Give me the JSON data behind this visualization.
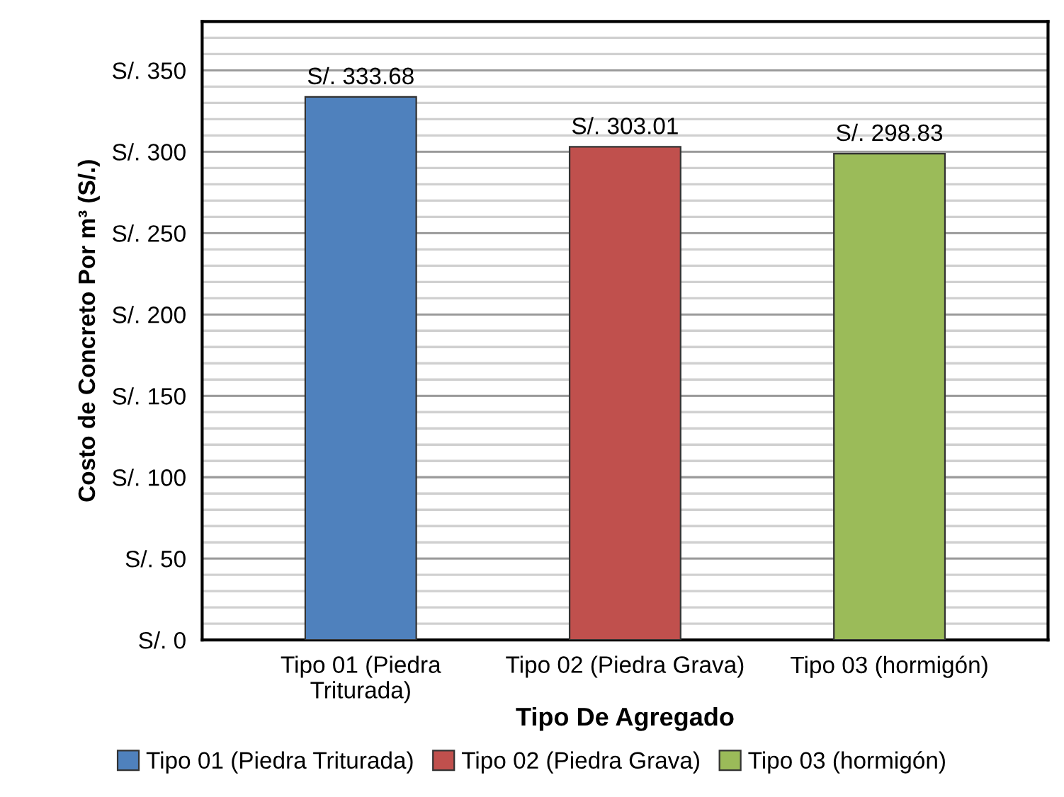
{
  "chart_data": {
    "type": "bar",
    "categories": [
      "Tipo 01 (Piedra\nTriturada)",
      "Tipo 02 (Piedra Grava)",
      "Tipo 03 (hormigón)"
    ],
    "series": [
      {
        "name": "Tipo 01 (Piedra Triturada)",
        "color": "#4f81bd",
        "values": [
          333.68,
          null,
          null
        ],
        "value_labels": [
          "S/. 333.68",
          null,
          null
        ]
      },
      {
        "name": "Tipo 02 (Piedra Grava)",
        "color": "#c0504d",
        "values": [
          null,
          303.01,
          null
        ],
        "value_labels": [
          null,
          "S/. 303.01",
          null
        ]
      },
      {
        "name": "Tipo 03 (hormigón)",
        "color": "#9bbb59",
        "values": [
          null,
          null,
          298.83
        ],
        "value_labels": [
          null,
          null,
          "S/. 298.83"
        ]
      }
    ],
    "xlabel": "Tipo De Agregado",
    "ylabel": "Costo de Concreto Por m³ (S/.)",
    "ylim": [
      0,
      380
    ],
    "yticks": [
      {
        "value": 0,
        "label": "S/. 0"
      },
      {
        "value": 10,
        "label": null
      },
      {
        "value": 20,
        "label": null
      },
      {
        "value": 30,
        "label": null
      },
      {
        "value": 40,
        "label": null
      },
      {
        "value": 50,
        "label": "S/. 50"
      },
      {
        "value": 60,
        "label": null
      },
      {
        "value": 70,
        "label": null
      },
      {
        "value": 80,
        "label": null
      },
      {
        "value": 90,
        "label": null
      },
      {
        "value": 100,
        "label": "S/. 100"
      },
      {
        "value": 110,
        "label": null
      },
      {
        "value": 120,
        "label": null
      },
      {
        "value": 130,
        "label": null
      },
      {
        "value": 140,
        "label": null
      },
      {
        "value": 150,
        "label": "S/. 150"
      },
      {
        "value": 160,
        "label": null
      },
      {
        "value": 170,
        "label": null
      },
      {
        "value": 180,
        "label": null
      },
      {
        "value": 190,
        "label": null
      },
      {
        "value": 200,
        "label": "S/. 200"
      },
      {
        "value": 210,
        "label": null
      },
      {
        "value": 220,
        "label": null
      },
      {
        "value": 230,
        "label": null
      },
      {
        "value": 240,
        "label": null
      },
      {
        "value": 250,
        "label": "S/. 250"
      },
      {
        "value": 260,
        "label": null
      },
      {
        "value": 270,
        "label": null
      },
      {
        "value": 280,
        "label": null
      },
      {
        "value": 290,
        "label": null
      },
      {
        "value": 300,
        "label": "S/. 300"
      },
      {
        "value": 310,
        "label": null
      },
      {
        "value": 320,
        "label": null
      },
      {
        "value": 330,
        "label": null
      },
      {
        "value": 340,
        "label": null
      },
      {
        "value": 350,
        "label": "S/. 350"
      },
      {
        "value": 360,
        "label": null
      },
      {
        "value": 370,
        "label": null
      },
      {
        "value": 380,
        "label": null
      }
    ],
    "grid": "y",
    "legend": "bottom"
  }
}
